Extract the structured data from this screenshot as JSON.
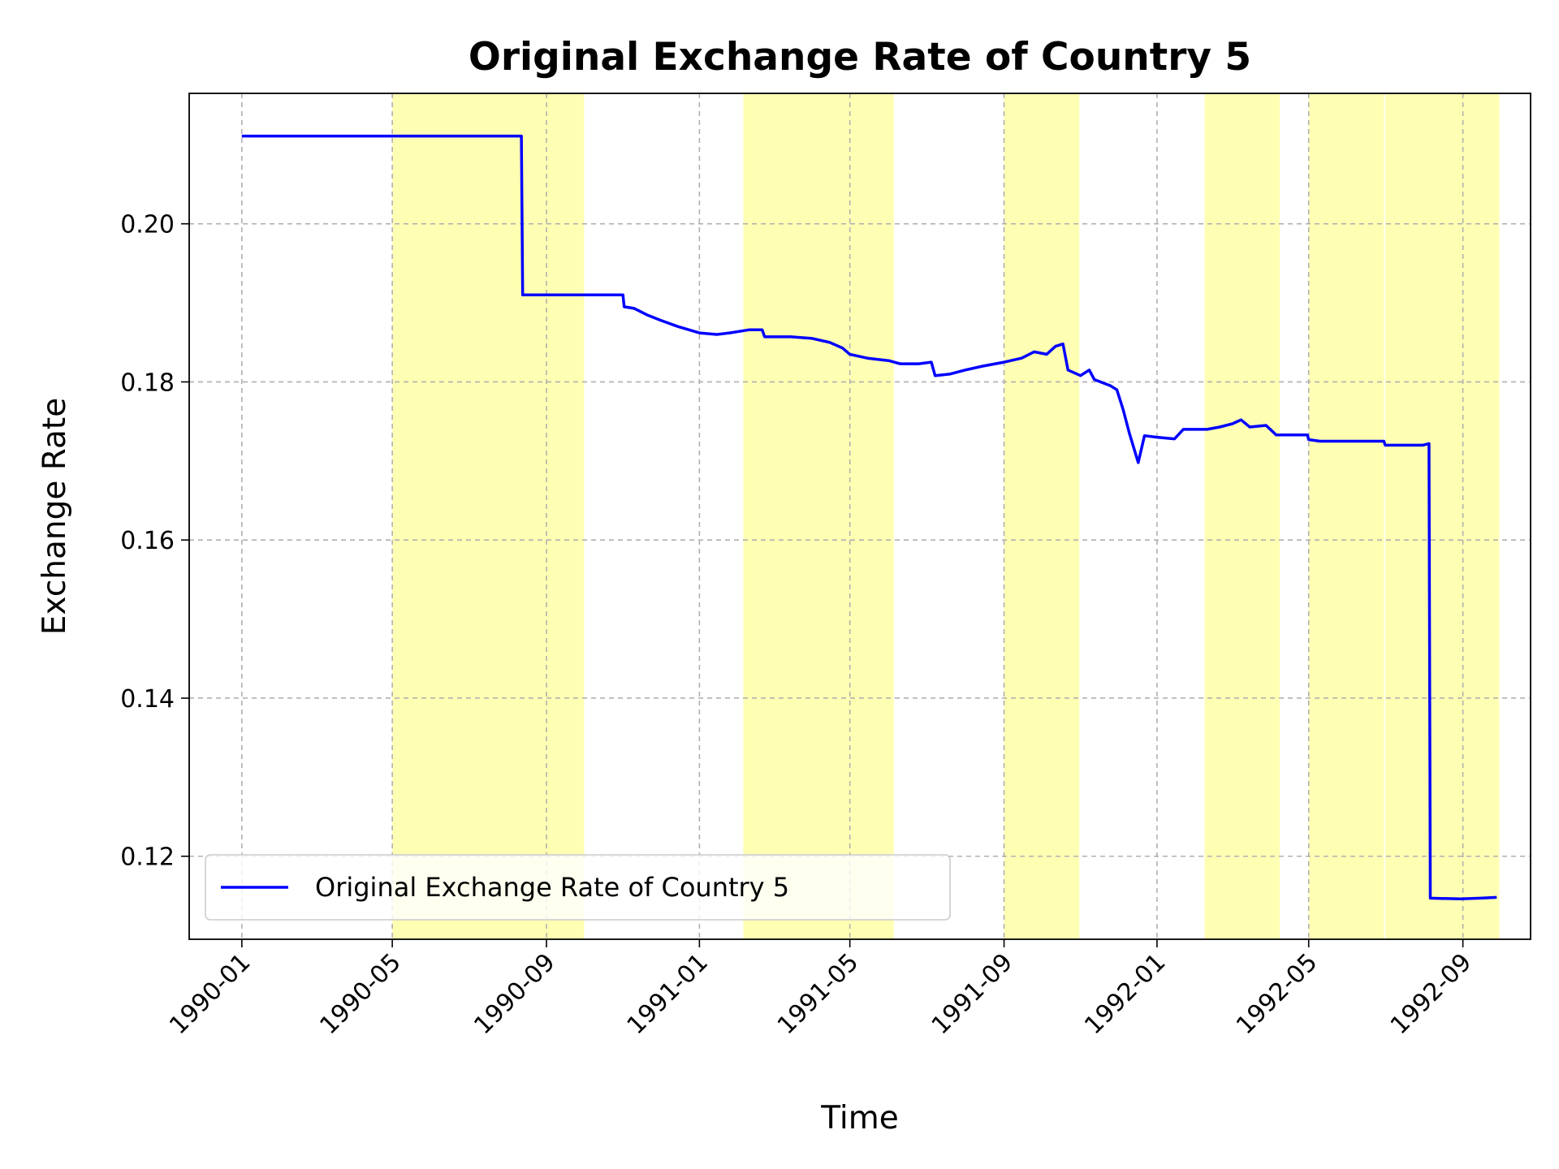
{
  "chart_data": {
    "type": "line",
    "title": "Original Exchange Rate of Country 5",
    "xlabel": "Time",
    "ylabel": "Exchange Rate",
    "x_range": [
      "1989-11-20",
      "1992-10-25"
    ],
    "ylim": [
      0.1095,
      0.2165
    ],
    "x_ticks": [
      "1990-01",
      "1990-05",
      "1990-09",
      "1991-01",
      "1991-05",
      "1991-09",
      "1992-01",
      "1992-05",
      "1992-09"
    ],
    "y_ticks": [
      "0.12",
      "0.14",
      "0.16",
      "0.18",
      "0.20"
    ],
    "grid": true,
    "legend_position": "lower-left",
    "highlight_color": "#ffff99",
    "highlight_regions": [
      {
        "start": "1990-05-01",
        "end": "1990-10-01"
      },
      {
        "start": "1991-02-05",
        "end": "1991-06-05"
      },
      {
        "start": "1991-09-01",
        "end": "1991-10-31"
      },
      {
        "start": "1992-02-08",
        "end": "1992-04-08"
      },
      {
        "start": "1992-05-01",
        "end": "1992-06-30"
      },
      {
        "start": "1992-07-01",
        "end": "1992-09-30"
      }
    ],
    "series": [
      {
        "name": "Original Exchange Rate of Country 5",
        "color": "#0000ff",
        "points": [
          [
            "1990-01-01",
            0.2111
          ],
          [
            "1990-07-15",
            0.2111
          ],
          [
            "1990-08-12",
            0.2111
          ],
          [
            "1990-08-13",
            0.191
          ],
          [
            "1990-10-20",
            0.191
          ],
          [
            "1990-11-01",
            0.191
          ],
          [
            "1990-11-02",
            0.1895
          ],
          [
            "1990-11-10",
            0.1893
          ],
          [
            "1990-11-20",
            0.1885
          ],
          [
            "1990-12-01",
            0.1878
          ],
          [
            "1990-12-15",
            0.187
          ],
          [
            "1991-01-01",
            0.1862
          ],
          [
            "1991-01-15",
            0.186
          ],
          [
            "1991-01-25",
            0.1862
          ],
          [
            "1991-02-10",
            0.1866
          ],
          [
            "1991-02-20",
            0.1866
          ],
          [
            "1991-02-22",
            0.1857
          ],
          [
            "1991-03-15",
            0.1857
          ],
          [
            "1991-04-01",
            0.1855
          ],
          [
            "1991-04-15",
            0.185
          ],
          [
            "1991-04-25",
            0.1843
          ],
          [
            "1991-05-01",
            0.1835
          ],
          [
            "1991-05-15",
            0.183
          ],
          [
            "1991-06-01",
            0.1827
          ],
          [
            "1991-06-10",
            0.1823
          ],
          [
            "1991-06-25",
            0.1823
          ],
          [
            "1991-07-05",
            0.1825
          ],
          [
            "1991-07-08",
            0.1808
          ],
          [
            "1991-07-20",
            0.181
          ],
          [
            "1991-08-01",
            0.1815
          ],
          [
            "1991-08-15",
            0.182
          ],
          [
            "1991-09-01",
            0.1825
          ],
          [
            "1991-09-15",
            0.183
          ],
          [
            "1991-09-25",
            0.1838
          ],
          [
            "1991-10-05",
            0.1835
          ],
          [
            "1991-10-12",
            0.1845
          ],
          [
            "1991-10-18",
            0.1848
          ],
          [
            "1991-10-22",
            0.1815
          ],
          [
            "1991-11-01",
            0.1808
          ],
          [
            "1991-11-08",
            0.1815
          ],
          [
            "1991-11-12",
            0.1803
          ],
          [
            "1991-11-25",
            0.1795
          ],
          [
            "1991-11-30",
            0.179
          ],
          [
            "1991-12-05",
            0.1765
          ],
          [
            "1991-12-10",
            0.1735
          ],
          [
            "1991-12-17",
            0.1698
          ],
          [
            "1991-12-22",
            0.1732
          ],
          [
            "1992-01-01",
            0.173
          ],
          [
            "1992-01-15",
            0.1728
          ],
          [
            "1992-01-22",
            0.174
          ],
          [
            "1992-02-10",
            0.174
          ],
          [
            "1992-02-20",
            0.1743
          ],
          [
            "1992-03-01",
            0.1747
          ],
          [
            "1992-03-08",
            0.1752
          ],
          [
            "1992-03-15",
            0.1743
          ],
          [
            "1992-03-28",
            0.1745
          ],
          [
            "1992-04-05",
            0.1733
          ],
          [
            "1992-04-30",
            0.1733
          ],
          [
            "1992-05-01",
            0.1727
          ],
          [
            "1992-05-10",
            0.1725
          ],
          [
            "1992-06-30",
            0.1725
          ],
          [
            "1992-07-01",
            0.172
          ],
          [
            "1992-07-31",
            0.172
          ],
          [
            "1992-08-05",
            0.1722
          ],
          [
            "1992-08-06",
            0.1147
          ],
          [
            "1992-08-30",
            0.1146
          ],
          [
            "1992-09-15",
            0.1147
          ],
          [
            "1992-09-28",
            0.1148
          ]
        ]
      }
    ]
  }
}
